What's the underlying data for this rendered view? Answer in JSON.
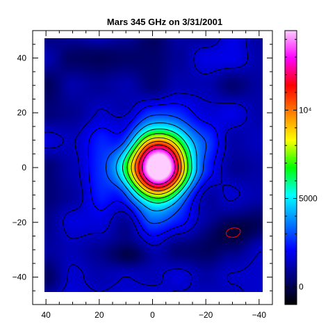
{
  "chart_data": {
    "type": "heatmap",
    "title": "Mars 345 GHz on 3/31/2001",
    "xlabel": "",
    "ylabel": "",
    "xlim": [
      45,
      -45
    ],
    "ylim": [
      -50,
      50
    ],
    "x_ticks": [
      40,
      20,
      0,
      -20,
      -40
    ],
    "x_tick_labels": [
      "40",
      "20",
      "0",
      "−20",
      "−40"
    ],
    "y_ticks": [
      40,
      20,
      0,
      -20,
      -40
    ],
    "y_tick_labels": [
      "40",
      "20",
      "0",
      "−20",
      "−40"
    ],
    "colorbar": {
      "range": [
        -1000,
        14500
      ],
      "ticks": [
        0,
        5000,
        10000
      ],
      "tick_labels": [
        "0",
        "5000",
        "10⁴"
      ]
    },
    "colormap": [
      "#000000",
      "#00007a",
      "#0000ff",
      "#0080ff",
      "#00ffff",
      "#00ff00",
      "#ffff00",
      "#ff8000",
      "#ff0000",
      "#ff00ff",
      "#ffccff"
    ],
    "source": {
      "center": [
        -2,
        0
      ],
      "peak_value": 14000,
      "sigma": [
        7,
        8
      ],
      "background": 1000
    },
    "contour_color": "#000000",
    "negative_contour_color": "#ff0000",
    "grid": false,
    "legend": "none"
  }
}
